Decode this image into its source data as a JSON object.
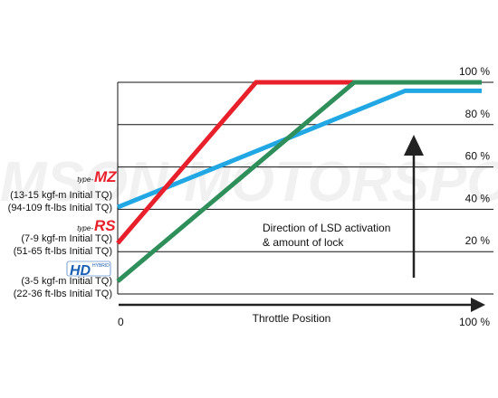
{
  "chart_data": {
    "type": "line",
    "x_axis": {
      "label": "Throttle Position",
      "start_label": "0",
      "end_label": "100 %"
    },
    "y_axis": {
      "min": 0,
      "max": 100,
      "tick_labels": [
        "20 %",
        "40 %",
        "60 %",
        "80 %",
        "100 %"
      ]
    },
    "grid": true,
    "series": [
      {
        "name": "type-MZ",
        "color": "#21a8e4",
        "points": [
          [
            0,
            41
          ],
          [
            79,
            96
          ],
          [
            100,
            96
          ]
        ]
      },
      {
        "name": "type-RS",
        "color": "#e8202b",
        "points": [
          [
            0,
            24
          ],
          [
            38,
            100
          ],
          [
            100,
            100
          ]
        ]
      },
      {
        "name": "HD",
        "color": "#2e8f5b",
        "points": [
          [
            0,
            6
          ],
          [
            65,
            100
          ],
          [
            100,
            100
          ]
        ]
      }
    ],
    "legend": [
      {
        "type_label": "type-",
        "model_label": "MZ",
        "color": "#e8202b",
        "line1": "(13-15 kgf-m Initial TQ)",
        "line2": "(94-109 ft-lbs Initial TQ)"
      },
      {
        "type_label": "type-",
        "model_label": "RS",
        "color": "#e8202b",
        "line1": "(7-9 kgf-m Initial TQ)",
        "line2": "(51-65 ft-lbs Initial TQ)"
      },
      {
        "type_label": "HYBRID",
        "model_label": "HD",
        "color": "#1b5fb4",
        "line1": "(3-5 kgf-m Initial TQ)",
        "line2": "(22-36 ft-lbs Initial TQ)"
      }
    ],
    "annotation": {
      "line1": "Direction of LSD activation",
      "line2": "& amount of lock"
    },
    "watermark": "TOMSON MOTORSPORT"
  }
}
